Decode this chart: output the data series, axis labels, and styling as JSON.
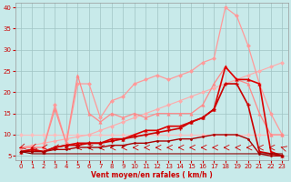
{
  "xlabel": "Vent moyen/en rafales ( km/h )",
  "xlim": [
    -0.5,
    23.5
  ],
  "ylim": [
    4,
    41
  ],
  "yticks": [
    5,
    10,
    15,
    20,
    25,
    30,
    35,
    40
  ],
  "xticks": [
    0,
    1,
    2,
    3,
    4,
    5,
    6,
    7,
    8,
    9,
    10,
    11,
    12,
    13,
    14,
    15,
    16,
    17,
    18,
    19,
    20,
    21,
    22,
    23
  ],
  "bg_color": "#c8eaea",
  "grid_color": "#a0c4c4",
  "series": [
    {
      "x": [
        0,
        1,
        2,
        3,
        4,
        5,
        6,
        7,
        8,
        9,
        10,
        11,
        12,
        13,
        14,
        15,
        16,
        17,
        18,
        19,
        20,
        21,
        22,
        23
      ],
      "y": [
        10,
        10,
        10,
        10,
        10,
        10,
        10,
        10,
        10,
        10,
        10,
        10,
        10,
        10,
        10,
        10,
        10,
        10,
        10,
        10,
        10,
        10,
        10,
        10
      ],
      "color": "#ffbbbb",
      "marker": "D",
      "lw": 0.8,
      "ms": 2.5
    },
    {
      "x": [
        0,
        1,
        2,
        3,
        4,
        5,
        6,
        7,
        8,
        9,
        10,
        11,
        12,
        13,
        14,
        15,
        16,
        17,
        18,
        19,
        20,
        21,
        22,
        23
      ],
      "y": [
        7,
        7.5,
        8,
        8.5,
        9,
        9.5,
        10,
        11,
        12,
        13,
        14,
        15,
        16,
        17,
        18,
        19,
        20,
        21,
        22,
        23,
        24,
        25,
        26,
        27
      ],
      "color": "#ffaaaa",
      "marker": "D",
      "lw": 0.8,
      "ms": 2.5
    },
    {
      "x": [
        0,
        1,
        2,
        3,
        4,
        5,
        6,
        7,
        8,
        9,
        10,
        11,
        12,
        13,
        14,
        15,
        16,
        17,
        18,
        19,
        20,
        21,
        22,
        23
      ],
      "y": [
        7,
        7,
        7,
        17,
        8,
        22,
        22,
        14,
        18,
        19,
        22,
        23,
        24,
        23,
        24,
        25,
        27,
        28,
        40,
        38,
        31,
        22,
        15,
        10
      ],
      "color": "#ff9999",
      "marker": "D",
      "lw": 0.9,
      "ms": 2.5
    },
    {
      "x": [
        0,
        1,
        2,
        3,
        4,
        5,
        6,
        7,
        8,
        9,
        10,
        11,
        12,
        13,
        14,
        15,
        16,
        17,
        18,
        19,
        20,
        21,
        22,
        23
      ],
      "y": [
        7,
        7,
        7,
        16,
        8,
        24,
        15,
        13,
        15,
        14,
        15,
        14,
        15,
        15,
        15,
        15,
        17,
        22,
        26,
        23,
        22,
        15,
        10,
        10
      ],
      "color": "#ff8888",
      "marker": "^",
      "lw": 0.9,
      "ms": 3
    },
    {
      "x": [
        0,
        1,
        2,
        3,
        4,
        5,
        6,
        7,
        8,
        9,
        10,
        11,
        12,
        13,
        14,
        15,
        16,
        17,
        18,
        19,
        20,
        21,
        22,
        23
      ],
      "y": [
        6,
        6.5,
        6,
        7,
        7.5,
        8,
        8,
        8,
        9,
        9,
        10,
        11,
        11,
        12,
        12,
        13,
        14,
        16,
        26,
        23,
        23,
        22,
        6,
        5
      ],
      "color": "#dd0000",
      "marker": "^",
      "lw": 1.2,
      "ms": 3
    },
    {
      "x": [
        0,
        1,
        2,
        3,
        4,
        5,
        6,
        7,
        8,
        9,
        10,
        11,
        12,
        13,
        14,
        15,
        16,
        17,
        18,
        19,
        20,
        21,
        22,
        23
      ],
      "y": [
        6,
        6.5,
        6,
        7,
        7.5,
        7.5,
        8,
        8,
        8.5,
        9,
        9.5,
        10,
        10.5,
        11,
        11.5,
        13,
        14,
        16,
        22,
        22,
        17,
        6,
        5.5,
        5
      ],
      "color": "#cc0000",
      "marker": "P",
      "lw": 1.2,
      "ms": 3
    },
    {
      "x": [
        0,
        1,
        2,
        3,
        4,
        5,
        6,
        7,
        8,
        9,
        10,
        11,
        12,
        13,
        14,
        15,
        16,
        17,
        18,
        19,
        20,
        21,
        22,
        23
      ],
      "y": [
        6,
        6,
        6,
        6.5,
        6.5,
        7,
        7,
        7,
        7.5,
        7.5,
        8,
        8,
        8.5,
        8.5,
        9,
        9,
        9.5,
        10,
        10,
        10,
        9,
        5.5,
        5,
        5
      ],
      "color": "#aa0000",
      "marker": "o",
      "lw": 1.0,
      "ms": 2
    },
    {
      "x": [
        0,
        1,
        2,
        3,
        4,
        5,
        6,
        7,
        8,
        9,
        10,
        11,
        12,
        13,
        14,
        15,
        16,
        17,
        18,
        19,
        20,
        21,
        22,
        23
      ],
      "y": [
        6,
        5.5,
        5.5,
        5.5,
        5.5,
        5.5,
        5.5,
        5.5,
        5.5,
        5.5,
        5.5,
        5.5,
        5.5,
        5.5,
        5.5,
        5.5,
        5.5,
        5.5,
        5.5,
        5.5,
        5.5,
        5.5,
        5.5,
        5.5
      ],
      "color": "#880000",
      "marker": null,
      "lw": 0.8,
      "ms": 0
    }
  ],
  "wind_arrow_color": "#cc0000"
}
